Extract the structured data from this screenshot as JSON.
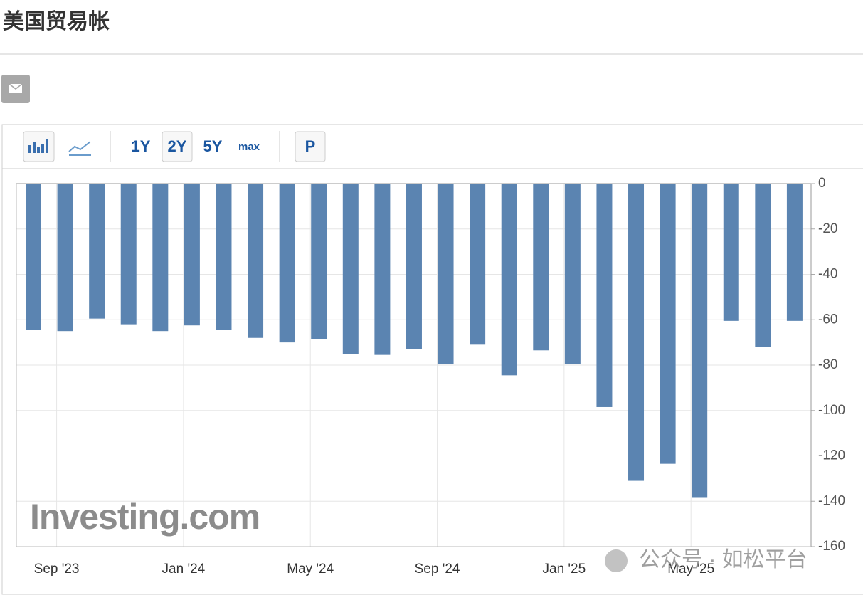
{
  "page": {
    "title": "美国贸易帐",
    "buttons": [
      "1Y",
      "2Y",
      "5Y",
      "max",
      "P"
    ]
  },
  "chart_data": {
    "type": "bar",
    "categories": [
      null,
      "Sep '23",
      null,
      null,
      null,
      "Jan '24",
      null,
      null,
      null,
      "May '24",
      null,
      null,
      null,
      "Sep '24",
      null,
      null,
      null,
      "Jan '25",
      null,
      null,
      null,
      "May '25",
      null,
      null,
      null
    ],
    "values": [
      -64.5,
      -65,
      -59.5,
      -62,
      -65,
      -62.5,
      -64.5,
      -68,
      -70,
      -68.5,
      -75,
      -75.5,
      -73,
      -79.5,
      -71,
      -84.5,
      -73.5,
      -79.5,
      -98.5,
      -131,
      -123.5,
      -138.5,
      -60.5,
      -72,
      -60.5
    ],
    "color": "#5b84b1",
    "ylim": [
      -160,
      0
    ],
    "yticks": [
      0,
      -20,
      -40,
      -60,
      -80,
      -100,
      -120,
      -140,
      -160
    ],
    "grid": true,
    "watermarks": [
      "Investing.com",
      "公众号 · 如松平台"
    ]
  }
}
